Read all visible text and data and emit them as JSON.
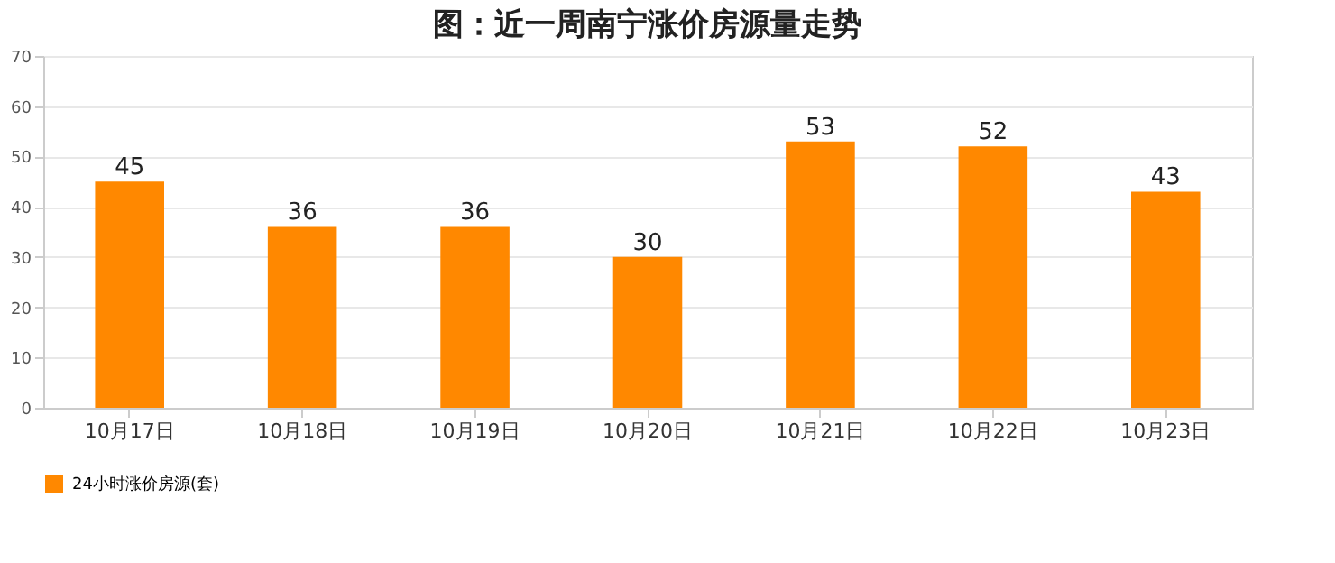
{
  "chart_data": {
    "type": "bar",
    "title": "图：近一周南宁涨价房源量走势",
    "categories": [
      "10月17日",
      "10月18日",
      "10月19日",
      "10月20日",
      "10月21日",
      "10月22日",
      "10月23日"
    ],
    "series": [
      {
        "name": "24小时涨价房源(套)",
        "color": "#ff8800",
        "values": [
          45,
          36,
          36,
          30,
          53,
          52,
          43
        ]
      }
    ],
    "ylim": [
      0,
      70
    ],
    "yticks": [
      0,
      10,
      20,
      30,
      40,
      50,
      60,
      70
    ],
    "grid": "y",
    "legend": "bottom",
    "data_labels": true
  }
}
